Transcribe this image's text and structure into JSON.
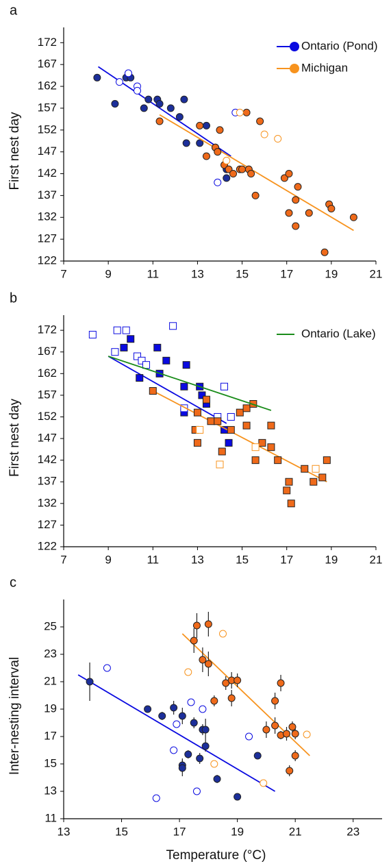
{
  "chart_data": [
    {
      "type": "scatter",
      "panel_label": "a",
      "ylabel": "First nest day",
      "xlim": [
        7,
        21
      ],
      "ylim": [
        122,
        175.5
      ],
      "xticks": [
        7,
        9,
        11,
        13,
        15,
        17,
        19,
        21
      ],
      "yticks": [
        122,
        127,
        132,
        137,
        142,
        147,
        152,
        157,
        162,
        167,
        172
      ],
      "legend": "upper right",
      "series": [
        {
          "name": "Ontario (Pond)",
          "color": "#0a0ae0",
          "fill": "#1c2f9a",
          "marker": "circle",
          "x": [
            8.5,
            9.3,
            9.8,
            10.0,
            10.6,
            10.8,
            11.2,
            11.3,
            11.8,
            12.2,
            12.4,
            12.5,
            13.1,
            13.4,
            13.8,
            14.3,
            14.3,
            9.5,
            9.9,
            10.3,
            10.3,
            13.9,
            14.7
          ],
          "values": [
            164,
            158,
            164,
            164,
            157,
            159,
            159,
            158,
            157,
            155,
            159,
            149,
            149,
            153,
            148,
            143,
            141,
            163,
            165,
            162,
            161,
            140,
            156
          ],
          "hollow": [
            false,
            false,
            false,
            false,
            false,
            false,
            false,
            false,
            false,
            false,
            false,
            false,
            false,
            false,
            false,
            false,
            false,
            true,
            true,
            true,
            true,
            true,
            true
          ],
          "fit": {
            "x": [
              8.55,
              14.5
            ],
            "values": [
              166.5,
              146
            ]
          }
        },
        {
          "name": "Michigan",
          "color": "#f7931e",
          "fill": "#ef6a1a",
          "marker": "circle",
          "x": [
            11.3,
            13.1,
            13.4,
            13.8,
            13.9,
            14.0,
            14.2,
            14.4,
            14.6,
            14.9,
            15.0,
            15.2,
            15.3,
            15.4,
            15.6,
            15.8,
            16.9,
            17.1,
            17.1,
            17.4,
            17.4,
            17.5,
            18.0,
            18.7,
            18.9,
            19.0,
            20.0,
            14.9,
            16.0,
            16.6,
            14.3
          ],
          "values": [
            154,
            153,
            146,
            148,
            147,
            152,
            144,
            143,
            142,
            143,
            143,
            156,
            143,
            142,
            137,
            154,
            141,
            142,
            133,
            136,
            130,
            139,
            133,
            124,
            135,
            134,
            132,
            156,
            151,
            150,
            145
          ],
          "hollow": [
            false,
            false,
            false,
            false,
            false,
            false,
            false,
            false,
            false,
            false,
            false,
            false,
            false,
            false,
            false,
            false,
            false,
            false,
            false,
            false,
            false,
            false,
            false,
            false,
            false,
            false,
            false,
            true,
            true,
            true,
            true
          ],
          "fit": {
            "x": [
              11.3,
              20.0
            ],
            "values": [
              155.5,
              129
            ]
          }
        }
      ]
    },
    {
      "type": "scatter",
      "panel_label": "b",
      "ylabel": "First nest day",
      "xlim": [
        7,
        21
      ],
      "ylim": [
        122,
        175.5
      ],
      "xticks": [
        7,
        9,
        11,
        13,
        15,
        17,
        19,
        21
      ],
      "yticks": [
        122,
        127,
        132,
        137,
        142,
        147,
        152,
        157,
        162,
        167,
        172
      ],
      "legend": "upper right",
      "series": [
        {
          "color": "#0a0ae0",
          "fill": "#0a0ae0",
          "marker": "square",
          "x": [
            9.7,
            10.0,
            10.4,
            11.2,
            11.3,
            11.6,
            12.5,
            12.4,
            12.4,
            13.1,
            13.2,
            13.4,
            14.2,
            14.4,
            8.3,
            9.3,
            9.4,
            9.8,
            10.3,
            10.5,
            10.7,
            11.9,
            12.4,
            13.9,
            14.2,
            14.5
          ],
          "values": [
            168,
            170,
            161,
            168,
            162,
            165,
            164,
            159,
            153,
            159,
            157,
            155,
            149,
            146,
            171,
            167,
            172,
            172,
            166,
            165,
            164,
            173,
            154,
            152,
            159,
            152
          ],
          "hollow": [
            false,
            false,
            false,
            false,
            false,
            false,
            false,
            false,
            false,
            false,
            false,
            false,
            false,
            false,
            true,
            true,
            true,
            true,
            true,
            true,
            true,
            true,
            true,
            true,
            true,
            true
          ],
          "fit": {
            "x": [
              9.0,
              14.3
            ],
            "values": [
              166,
              150.5
            ]
          }
        },
        {
          "color": "#f7931e",
          "fill": "#ef6a1a",
          "marker": "square",
          "x": [
            11.0,
            13.4,
            13.0,
            12.9,
            13.0,
            13.6,
            13.9,
            14.5,
            14.1,
            14.9,
            15.2,
            15.2,
            15.5,
            15.6,
            15.9,
            16.3,
            16.3,
            16.6,
            17.1,
            17.0,
            17.2,
            17.8,
            18.2,
            18.6,
            18.8,
            13.1,
            14.0,
            15.6,
            18.3
          ],
          "values": [
            158,
            156,
            153,
            149,
            146,
            151,
            151,
            149,
            144,
            153,
            150,
            154,
            155,
            142,
            146,
            145,
            150,
            142,
            137,
            135,
            132,
            140,
            137,
            138,
            142,
            149,
            141,
            145,
            140
          ],
          "hollow": [
            false,
            false,
            false,
            false,
            false,
            false,
            false,
            false,
            false,
            false,
            false,
            false,
            false,
            false,
            false,
            false,
            false,
            false,
            false,
            false,
            false,
            false,
            false,
            false,
            false,
            true,
            true,
            true,
            true
          ],
          "fit": {
            "x": [
              11.0,
              18.8
            ],
            "values": [
              158,
              137
            ]
          }
        },
        {
          "name": "Ontario (Lake)",
          "color": "#1a8c1a",
          "fit": {
            "x": [
              9.0,
              16.3
            ],
            "values": [
              166,
              153.5
            ]
          }
        }
      ]
    },
    {
      "type": "scatter",
      "panel_label": "c",
      "ylabel": "Inter-nesting interval",
      "xlabel": "Temperature (°C)",
      "xlim": [
        13,
        24
      ],
      "ylim": [
        11,
        27
      ],
      "xticks": [
        13,
        15,
        17,
        19,
        21,
        23
      ],
      "yticks": [
        11,
        13,
        15,
        17,
        19,
        21,
        23,
        25
      ],
      "series": [
        {
          "color": "#0a0ae0",
          "fill": "#1c2f9a",
          "marker": "circle",
          "x": [
            13.9,
            15.9,
            16.4,
            16.8,
            17.1,
            17.1,
            17.1,
            17.3,
            17.5,
            17.7,
            17.8,
            17.9,
            17.9,
            18.3,
            19.0,
            19.7,
            14.5,
            16.2,
            16.8,
            16.9,
            17.4,
            17.6,
            17.8,
            19.4
          ],
          "values": [
            21.0,
            19.0,
            18.5,
            19.1,
            18.5,
            14.9,
            14.7,
            15.7,
            18.0,
            15.4,
            17.5,
            17.5,
            16.3,
            13.9,
            12.6,
            15.6,
            22.0,
            12.5,
            16.0,
            17.9,
            19.5,
            13.0,
            19.0,
            17.0
          ],
          "errors": [
            1.4,
            0.2,
            0.3,
            0.5,
            0.6,
            0.5,
            0.6,
            0.3,
            0.4,
            0.4,
            0.4,
            0.8,
            0.4,
            0.3,
            0.2,
            0.2,
            null,
            null,
            null,
            null,
            null,
            null,
            null,
            null
          ],
          "hollow": [
            false,
            false,
            false,
            false,
            false,
            false,
            false,
            false,
            false,
            false,
            false,
            false,
            false,
            false,
            false,
            false,
            true,
            true,
            true,
            true,
            true,
            true,
            true,
            true
          ],
          "fit": {
            "x": [
              13.5,
              20.3
            ],
            "values": [
              21.5,
              13.0
            ]
          }
        },
        {
          "color": "#f7931e",
          "fill": "#ef6a1a",
          "marker": "circle",
          "x": [
            17.5,
            17.6,
            17.8,
            18.0,
            18.0,
            18.2,
            18.6,
            18.8,
            18.8,
            19.0,
            20.0,
            20.3,
            20.3,
            20.5,
            20.5,
            20.7,
            20.8,
            20.9,
            21.0,
            21.0,
            17.3,
            18.5,
            18.2,
            19.9,
            21.4
          ],
          "values": [
            24.0,
            25.1,
            22.6,
            25.2,
            22.3,
            19.6,
            20.9,
            21.1,
            19.8,
            21.1,
            17.5,
            19.6,
            17.8,
            20.9,
            17.1,
            17.2,
            14.5,
            17.7,
            17.2,
            15.6,
            21.7,
            24.5,
            15.0,
            13.6,
            17.15
          ],
          "errors": [
            0.9,
            0.9,
            0.9,
            0.9,
            0.9,
            0.4,
            0.5,
            0.6,
            0.6,
            0.5,
            0.6,
            0.6,
            0.6,
            0.6,
            0.3,
            0.5,
            0.4,
            0.4,
            0.4,
            0.4,
            null,
            null,
            null,
            null,
            null
          ],
          "hollow": [
            false,
            false,
            false,
            false,
            false,
            false,
            false,
            false,
            false,
            false,
            false,
            false,
            false,
            false,
            false,
            false,
            false,
            false,
            false,
            false,
            true,
            true,
            true,
            true,
            true
          ],
          "fit": {
            "x": [
              17.1,
              21.5
            ],
            "values": [
              24.5,
              15.6
            ]
          }
        }
      ]
    }
  ]
}
